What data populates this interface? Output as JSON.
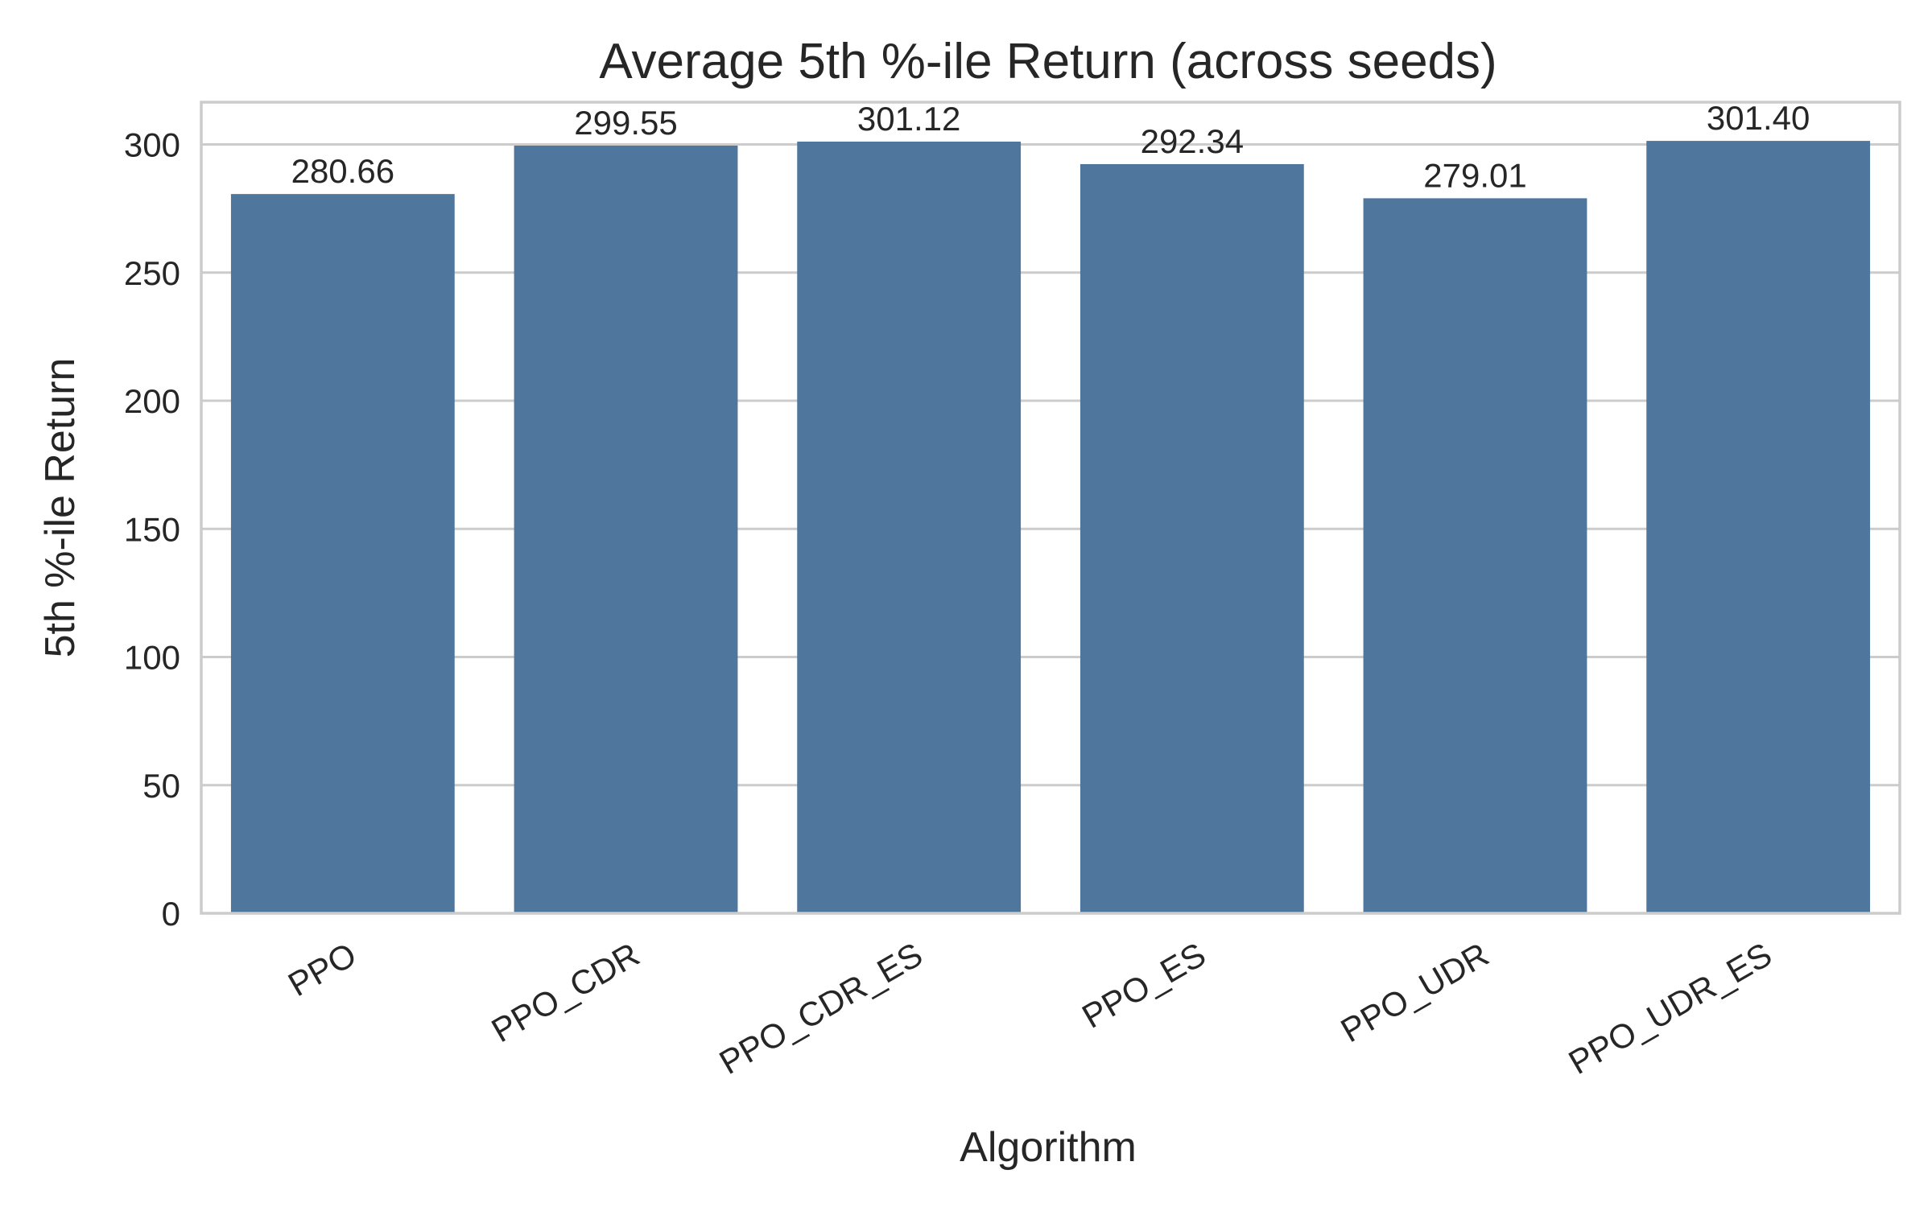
{
  "chart_data": {
    "type": "bar",
    "title": "Average 5th %-ile Return (across seeds)",
    "xlabel": "Algorithm",
    "ylabel": "5th %-ile Return",
    "categories": [
      "PPO",
      "PPO_CDR",
      "PPO_CDR_ES",
      "PPO_ES",
      "PPO_UDR",
      "PPO_UDR_ES"
    ],
    "values": [
      280.66,
      299.55,
      301.12,
      292.34,
      279.01,
      301.4
    ],
    "value_labels": [
      "280.66",
      "299.55",
      "301.12",
      "292.34",
      "279.01",
      "301.40"
    ],
    "yticks": [
      0,
      50,
      100,
      150,
      200,
      250,
      300
    ],
    "ylim": [
      0,
      316.5
    ],
    "grid": "horizontal",
    "legend": "none",
    "bar_color": "#4f769d"
  }
}
